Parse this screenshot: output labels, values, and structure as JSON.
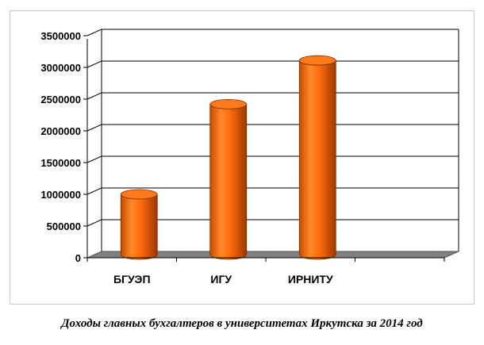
{
  "caption": "Доходы главных бухгалтеров в университетах Иркутска за 2014 год",
  "chart_data": {
    "type": "bar",
    "title": "",
    "xlabel": "",
    "ylabel": "",
    "categories": [
      "БГУЭП",
      "ИГУ",
      "ИРНИТУ",
      ""
    ],
    "values": [
      950000,
      2370000,
      3060000,
      null
    ],
    "ylim": [
      0,
      3500000
    ],
    "yticks": [
      "0",
      "500000",
      "1000000",
      "1500000",
      "2000000",
      "2500000",
      "3000000",
      "3500000"
    ],
    "grid": true,
    "legend": "none",
    "style": "3d-cylinder",
    "colors": {
      "bar": "#ff6600",
      "floor": "#808080",
      "grid": "#000000"
    }
  }
}
